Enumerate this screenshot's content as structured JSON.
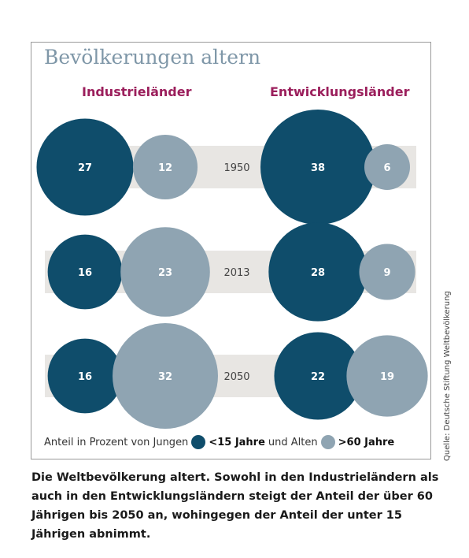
{
  "chart_data": {
    "type": "bubble",
    "title": "Bevölkerungen altern",
    "groups": [
      "Industrieländer",
      "Entwicklungsländer"
    ],
    "years": [
      "1950",
      "2013",
      "2050"
    ],
    "series": [
      {
        "name": "<15 Jahre",
        "color": "#0f4d6b"
      },
      {
        "name": ">60 Jahre",
        "color": "#8fa4b2"
      }
    ],
    "values": {
      "Industrieländer": {
        "<15 Jahre": [
          27,
          16,
          16
        ],
        ">60 Jahre": [
          12,
          23,
          32
        ]
      },
      "Entwicklungsländer": {
        "<15 Jahre": [
          38,
          28,
          22
        ],
        ">60 Jahre": [
          6,
          9,
          19
        ]
      }
    },
    "legend_prefix": "Anteil in Prozent von Jungen",
    "legend_mid": "und Alten"
  },
  "source": "Quelle: Deutsche Stiftung Weltbevölkerung",
  "caption": "Die Weltbevölkerung altert. Sowohl in den Industrieländern als auch in den Entwicklungsländern steigt der Anteil der über 60 Jährigen bis 2050 an, wohingegen der Anteil der unter 15 Jährigen abnimmt."
}
